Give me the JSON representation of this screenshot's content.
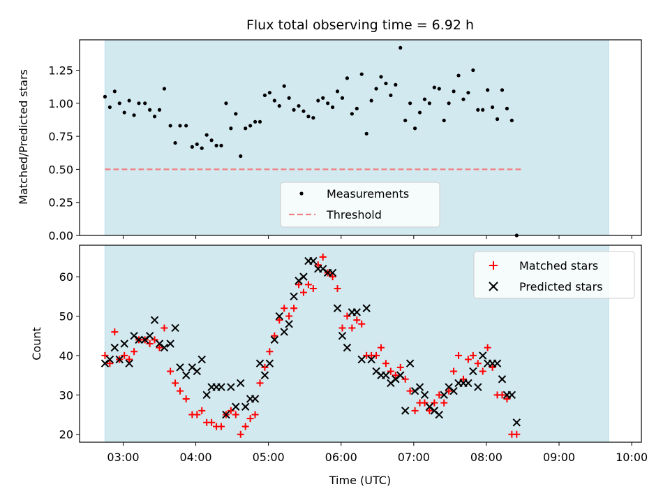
{
  "chart_data": [
    {
      "type": "scatter",
      "title": "Flux total observing time = 6.92 h",
      "ylabel": "Matched/Predicted stars",
      "ylim": [
        0,
        1.48
      ],
      "xlim": [
        "02:24",
        "10:08"
      ],
      "yticks": [
        "0.00",
        "0.25",
        "0.50",
        "0.75",
        "1.00",
        "1.25"
      ],
      "shaded_span": [
        "02:45",
        "09:41"
      ],
      "shade_color": "#d3e9f0",
      "grid": false,
      "legend_position": "lower-center",
      "series": [
        {
          "name": "Measurements",
          "marker": "dot",
          "color": "#000000",
          "points": [
            [
              "02:45",
              1.05
            ],
            [
              "02:49",
              0.97
            ],
            [
              "02:53",
              1.09
            ],
            [
              "02:57",
              1.0
            ],
            [
              "03:01",
              0.93
            ],
            [
              "03:05",
              1.02
            ],
            [
              "03:09",
              0.91
            ],
            [
              "03:13",
              1.0
            ],
            [
              "03:18",
              1.0
            ],
            [
              "03:22",
              0.95
            ],
            [
              "03:26",
              0.9
            ],
            [
              "03:30",
              0.95
            ],
            [
              "03:34",
              1.11
            ],
            [
              "03:39",
              0.83
            ],
            [
              "03:43",
              0.7
            ],
            [
              "03:47",
              0.83
            ],
            [
              "03:52",
              0.83
            ],
            [
              "03:57",
              0.67
            ],
            [
              "04:01",
              0.69
            ],
            [
              "04:05",
              0.66
            ],
            [
              "04:09",
              0.76
            ],
            [
              "04:13",
              0.72
            ],
            [
              "04:17",
              0.68
            ],
            [
              "04:21",
              0.68
            ],
            [
              "04:25",
              1.0
            ],
            [
              "04:29",
              0.81
            ],
            [
              "04:33",
              0.92
            ],
            [
              "04:37",
              0.6
            ],
            [
              "04:41",
              0.81
            ],
            [
              "04:45",
              0.83
            ],
            [
              "04:49",
              0.86
            ],
            [
              "04:53",
              0.86
            ],
            [
              "04:57",
              1.06
            ],
            [
              "05:01",
              1.08
            ],
            [
              "05:05",
              1.02
            ],
            [
              "05:09",
              0.98
            ],
            [
              "05:13",
              1.13
            ],
            [
              "05:17",
              1.04
            ],
            [
              "05:21",
              0.95
            ],
            [
              "05:25",
              0.98
            ],
            [
              "05:29",
              0.94
            ],
            [
              "05:33",
              0.9
            ],
            [
              "05:37",
              0.89
            ],
            [
              "05:41",
              1.02
            ],
            [
              "05:45",
              1.04
            ],
            [
              "05:49",
              1.0
            ],
            [
              "05:53",
              0.97
            ],
            [
              "05:57",
              1.09
            ],
            [
              "06:01",
              1.04
            ],
            [
              "06:05",
              1.19
            ],
            [
              "06:09",
              0.92
            ],
            [
              "06:13",
              0.96
            ],
            [
              "06:17",
              1.22
            ],
            [
              "06:21",
              0.77
            ],
            [
              "06:25",
              1.02
            ],
            [
              "06:29",
              1.11
            ],
            [
              "06:33",
              1.2
            ],
            [
              "06:37",
              1.15
            ],
            [
              "06:41",
              1.06
            ],
            [
              "06:45",
              1.14
            ],
            [
              "06:49",
              1.42
            ],
            [
              "06:53",
              0.87
            ],
            [
              "06:57",
              1.0
            ],
            [
              "07:01",
              0.81
            ],
            [
              "07:05",
              0.93
            ],
            [
              "07:09",
              1.03
            ],
            [
              "07:13",
              1.0
            ],
            [
              "07:17",
              1.12
            ],
            [
              "07:21",
              1.11
            ],
            [
              "07:25",
              0.87
            ],
            [
              "07:29",
              1.0
            ],
            [
              "07:33",
              1.09
            ],
            [
              "07:37",
              1.21
            ],
            [
              "07:41",
              1.03
            ],
            [
              "07:45",
              1.08
            ],
            [
              "07:49",
              1.25
            ],
            [
              "07:53",
              0.95
            ],
            [
              "07:57",
              0.95
            ],
            [
              "08:01",
              1.1
            ],
            [
              "08:05",
              0.97
            ],
            [
              "08:09",
              0.88
            ],
            [
              "08:13",
              1.1
            ],
            [
              "08:17",
              0.96
            ],
            [
              "08:21",
              0.87
            ],
            [
              "08:25",
              0.0
            ]
          ]
        },
        {
          "name": "Threshold",
          "type": "line",
          "style": "dashed",
          "color": "#f08080",
          "points": [
            [
              "02:45",
              0.5
            ],
            [
              "08:25",
              0.5
            ]
          ]
        }
      ]
    },
    {
      "type": "scatter",
      "xlabel": "Time (UTC)",
      "ylabel": "Count",
      "xlim": [
        "02:24",
        "10:08"
      ],
      "ylim": [
        18,
        68
      ],
      "xticks": [
        "03:00",
        "04:00",
        "05:00",
        "06:00",
        "07:00",
        "08:00",
        "09:00",
        "10:00"
      ],
      "yticks": [
        "20",
        "30",
        "40",
        "50",
        "60"
      ],
      "shaded_span": [
        "02:45",
        "09:41"
      ],
      "shade_color": "#d3e9f0",
      "grid": false,
      "legend_position": "top-right",
      "series": [
        {
          "name": "Matched stars",
          "marker": "plus",
          "color": "#ff0000",
          "points": [
            [
              "02:45",
              40
            ],
            [
              "02:49",
              38
            ],
            [
              "02:53",
              46
            ],
            [
              "02:57",
              39
            ],
            [
              "03:01",
              40
            ],
            [
              "03:05",
              39
            ],
            [
              "03:09",
              41
            ],
            [
              "03:13",
              44
            ],
            [
              "03:18",
              44
            ],
            [
              "03:22",
              43
            ],
            [
              "03:26",
              44
            ],
            [
              "03:30",
              42
            ],
            [
              "03:34",
              47
            ],
            [
              "03:39",
              36
            ],
            [
              "03:43",
              33
            ],
            [
              "03:47",
              31
            ],
            [
              "03:52",
              29
            ],
            [
              "03:57",
              25
            ],
            [
              "04:01",
              25
            ],
            [
              "04:05",
              26
            ],
            [
              "04:09",
              23
            ],
            [
              "04:13",
              23
            ],
            [
              "04:17",
              22
            ],
            [
              "04:21",
              22
            ],
            [
              "04:25",
              25
            ],
            [
              "04:29",
              26
            ],
            [
              "04:33",
              25
            ],
            [
              "04:37",
              20
            ],
            [
              "04:41",
              22
            ],
            [
              "04:45",
              24
            ],
            [
              "04:49",
              25
            ],
            [
              "04:53",
              33
            ],
            [
              "04:57",
              37
            ],
            [
              "05:01",
              41
            ],
            [
              "05:05",
              45
            ],
            [
              "05:09",
              49
            ],
            [
              "05:13",
              52
            ],
            [
              "05:17",
              50
            ],
            [
              "05:21",
              52
            ],
            [
              "05:25",
              58
            ],
            [
              "05:29",
              56
            ],
            [
              "05:33",
              58
            ],
            [
              "05:37",
              57
            ],
            [
              "05:41",
              63
            ],
            [
              "05:45",
              65
            ],
            [
              "05:49",
              61
            ],
            [
              "05:53",
              60
            ],
            [
              "05:57",
              57
            ],
            [
              "06:01",
              47
            ],
            [
              "06:05",
              50
            ],
            [
              "06:09",
              47
            ],
            [
              "06:13",
              49
            ],
            [
              "06:17",
              48
            ],
            [
              "06:21",
              40
            ],
            [
              "06:25",
              40
            ],
            [
              "06:29",
              40
            ],
            [
              "06:33",
              42
            ],
            [
              "06:37",
              38
            ],
            [
              "06:41",
              36
            ],
            [
              "06:45",
              35
            ],
            [
              "06:49",
              37
            ],
            [
              "06:53",
              34
            ],
            [
              "06:57",
              31
            ],
            [
              "07:01",
              26
            ],
            [
              "07:05",
              28
            ],
            [
              "07:09",
              28
            ],
            [
              "07:13",
              26
            ],
            [
              "07:17",
              28
            ],
            [
              "07:21",
              30
            ],
            [
              "07:25",
              28
            ],
            [
              "07:29",
              31
            ],
            [
              "07:33",
              36
            ],
            [
              "07:37",
              40
            ],
            [
              "07:41",
              34
            ],
            [
              "07:45",
              39
            ],
            [
              "07:49",
              40
            ],
            [
              "07:53",
              38
            ],
            [
              "07:57",
              36
            ],
            [
              "08:01",
              42
            ],
            [
              "08:05",
              37
            ],
            [
              "08:09",
              30
            ],
            [
              "08:13",
              30
            ],
            [
              "08:17",
              29
            ],
            [
              "08:21",
              20
            ],
            [
              "08:25",
              20
            ]
          ]
        },
        {
          "name": "Predicted stars",
          "marker": "x",
          "color": "#000000",
          "points": [
            [
              "02:45",
              38
            ],
            [
              "02:49",
              39
            ],
            [
              "02:53",
              42
            ],
            [
              "02:57",
              39
            ],
            [
              "03:01",
              43
            ],
            [
              "03:05",
              38
            ],
            [
              "03:09",
              45
            ],
            [
              "03:13",
              44
            ],
            [
              "03:18",
              44
            ],
            [
              "03:22",
              45
            ],
            [
              "03:26",
              49
            ],
            [
              "03:30",
              43
            ],
            [
              "03:34",
              42
            ],
            [
              "03:39",
              43
            ],
            [
              "03:43",
              47
            ],
            [
              "03:47",
              37
            ],
            [
              "03:52",
              35
            ],
            [
              "03:57",
              37
            ],
            [
              "04:01",
              36
            ],
            [
              "04:05",
              39
            ],
            [
              "04:09",
              30
            ],
            [
              "04:13",
              32
            ],
            [
              "04:17",
              32
            ],
            [
              "04:21",
              32
            ],
            [
              "04:25",
              25
            ],
            [
              "04:29",
              32
            ],
            [
              "04:33",
              27
            ],
            [
              "04:37",
              33
            ],
            [
              "04:41",
              27
            ],
            [
              "04:45",
              29
            ],
            [
              "04:49",
              29
            ],
            [
              "04:53",
              38
            ],
            [
              "04:57",
              35
            ],
            [
              "05:01",
              38
            ],
            [
              "05:05",
              44
            ],
            [
              "05:09",
              50
            ],
            [
              "05:13",
              46
            ],
            [
              "05:17",
              48
            ],
            [
              "05:21",
              55
            ],
            [
              "05:25",
              59
            ],
            [
              "05:29",
              60
            ],
            [
              "05:33",
              64
            ],
            [
              "05:37",
              64
            ],
            [
              "05:41",
              62
            ],
            [
              "05:45",
              62
            ],
            [
              "05:49",
              61
            ],
            [
              "05:53",
              61
            ],
            [
              "05:57",
              52
            ],
            [
              "06:01",
              45
            ],
            [
              "06:05",
              42
            ],
            [
              "06:09",
              51
            ],
            [
              "06:13",
              51
            ],
            [
              "06:17",
              39
            ],
            [
              "06:21",
              52
            ],
            [
              "06:25",
              39
            ],
            [
              "06:29",
              36
            ],
            [
              "06:33",
              35
            ],
            [
              "06:37",
              35
            ],
            [
              "06:41",
              33
            ],
            [
              "06:45",
              34
            ],
            [
              "06:49",
              35
            ],
            [
              "06:53",
              26
            ],
            [
              "06:57",
              38
            ],
            [
              "07:01",
              31
            ],
            [
              "07:05",
              32
            ],
            [
              "07:09",
              30
            ],
            [
              "07:13",
              27
            ],
            [
              "07:17",
              26
            ],
            [
              "07:21",
              25
            ],
            [
              "07:25",
              30
            ],
            [
              "07:29",
              32
            ],
            [
              "07:33",
              31
            ],
            [
              "07:37",
              33
            ],
            [
              "07:41",
              33
            ],
            [
              "07:45",
              33
            ],
            [
              "07:49",
              36
            ],
            [
              "07:53",
              32
            ],
            [
              "07:57",
              40
            ],
            [
              "08:01",
              38
            ],
            [
              "08:05",
              38
            ],
            [
              "08:09",
              38
            ],
            [
              "08:13",
              34
            ],
            [
              "08:17",
              30
            ],
            [
              "08:21",
              30
            ],
            [
              "08:25",
              23
            ]
          ]
        }
      ]
    }
  ]
}
